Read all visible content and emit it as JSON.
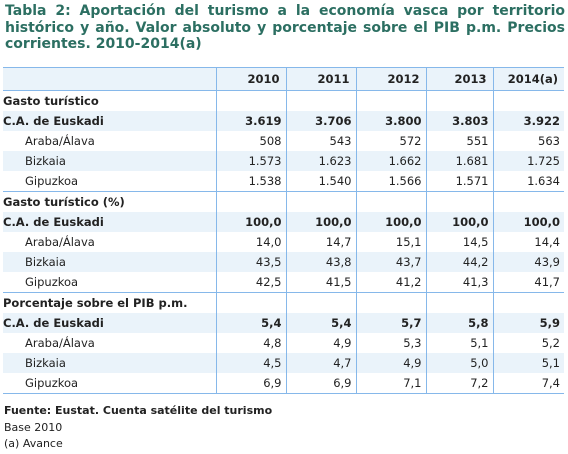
{
  "title": "Tabla 2:  Aportación del turismo a la economía vasca por territorio histórico y año. Valor absoluto y porcentaje sobre el PIB p.m. Precios corrientes. 2010-2014(a)",
  "columns": [
    "2010",
    "2011",
    "2012",
    "2013",
    "2014(a)"
  ],
  "sections": [
    {
      "heading": "Gasto turístico",
      "rows": [
        {
          "label": "C.A. de Euskadi",
          "values": [
            "3.619",
            "3.706",
            "3.800",
            "3.803",
            "3.922"
          ]
        },
        {
          "label": "Araba/Álava",
          "values": [
            "508",
            "543",
            "572",
            "551",
            "563"
          ]
        },
        {
          "label": "Bizkaia",
          "values": [
            "1.573",
            "1.623",
            "1.662",
            "1.681",
            "1.725"
          ]
        },
        {
          "label": "Gipuzkoa",
          "values": [
            "1.538",
            "1.540",
            "1.566",
            "1.571",
            "1.634"
          ]
        }
      ]
    },
    {
      "heading": "Gasto turístico (%)",
      "rows": [
        {
          "label": "C.A. de Euskadi",
          "values": [
            "100,0",
            "100,0",
            "100,0",
            "100,0",
            "100,0"
          ]
        },
        {
          "label": "Araba/Álava",
          "values": [
            "14,0",
            "14,7",
            "15,1",
            "14,5",
            "14,4"
          ]
        },
        {
          "label": "Bizkaia",
          "values": [
            "43,5",
            "43,8",
            "43,7",
            "44,2",
            "43,9"
          ]
        },
        {
          "label": "Gipuzkoa",
          "values": [
            "42,5",
            "41,5",
            "41,2",
            "41,3",
            "41,7"
          ]
        }
      ]
    },
    {
      "heading": "Porcentaje sobre el PIB p.m.",
      "rows": [
        {
          "label": "C.A. de Euskadi",
          "values": [
            "5,4",
            "5,4",
            "5,7",
            "5,8",
            "5,9"
          ]
        },
        {
          "label": "Araba/Álava",
          "values": [
            "4,8",
            "4,9",
            "5,3",
            "5,1",
            "5,2"
          ]
        },
        {
          "label": "Bizkaia",
          "values": [
            "4,5",
            "4,7",
            "4,9",
            "5,0",
            "5,1"
          ]
        },
        {
          "label": "Gipuzkoa",
          "values": [
            "6,9",
            "6,9",
            "7,1",
            "7,2",
            "7,4"
          ]
        }
      ]
    }
  ],
  "source": "Fuente: Eustat. Cuenta satélite del turismo",
  "notes": [
    "Base 2010",
    "(a) Avance"
  ]
}
